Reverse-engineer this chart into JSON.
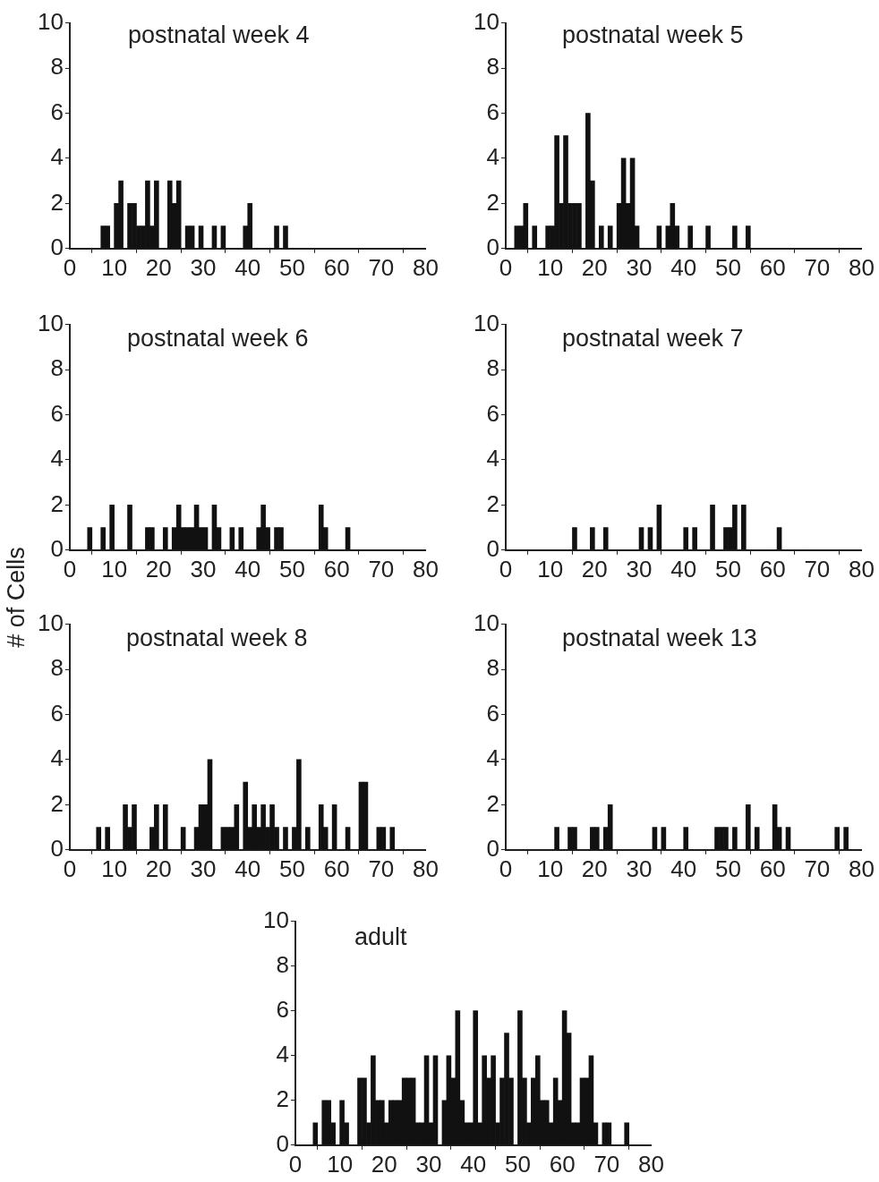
{
  "chart_data": [
    {
      "type": "histogram",
      "title": "postnatal week 4",
      "color": "#111111",
      "xlim": [
        0,
        80
      ],
      "xticks": [
        0,
        10,
        20,
        30,
        40,
        50,
        60,
        70,
        80
      ],
      "ylim": [
        0,
        10
      ],
      "yticks": [
        0,
        2,
        4,
        6,
        8,
        10
      ],
      "bins": [
        0,
        1,
        2,
        3,
        4,
        5,
        6,
        7,
        8,
        9,
        10,
        11,
        12,
        13,
        14,
        15,
        16,
        17,
        18,
        19,
        20,
        21,
        22,
        23,
        24,
        25,
        26,
        27,
        28,
        29,
        30,
        31,
        32,
        33,
        34,
        35,
        36,
        37,
        38,
        39,
        40,
        41,
        42,
        43,
        44,
        45,
        46,
        47,
        48,
        49,
        50,
        51,
        52,
        53,
        54,
        55,
        56,
        57,
        58,
        59,
        60,
        61,
        62,
        63,
        64,
        65,
        66,
        67,
        68,
        69,
        70,
        71,
        72,
        73,
        74,
        75,
        76,
        77,
        78,
        79,
        80
      ],
      "values": [
        0,
        0,
        0,
        0,
        0,
        0,
        0,
        1,
        1,
        0,
        2,
        3,
        0,
        2,
        2,
        1,
        1,
        3,
        1,
        3,
        0,
        0,
        3,
        2,
        3,
        0,
        1,
        1,
        0,
        1,
        0,
        0,
        1,
        0,
        1,
        0,
        0,
        0,
        0,
        1,
        2,
        0,
        0,
        0,
        0,
        0,
        1,
        0,
        1,
        0,
        0,
        0,
        0,
        0,
        0,
        0,
        0,
        0,
        0,
        0,
        0,
        0,
        0,
        0,
        0,
        0,
        0,
        0,
        0,
        0,
        0,
        0,
        0,
        0,
        0,
        0,
        0,
        0,
        0,
        0
      ]
    },
    {
      "type": "histogram",
      "title": "postnatal week 5",
      "color": "#111111",
      "xlim": [
        0,
        80
      ],
      "xticks": [
        0,
        10,
        20,
        30,
        40,
        50,
        60,
        70,
        80
      ],
      "ylim": [
        0,
        10
      ],
      "yticks": [
        0,
        2,
        4,
        6,
        8,
        10
      ],
      "bins": [
        0,
        1,
        2,
        3,
        4,
        5,
        6,
        7,
        8,
        9,
        10,
        11,
        12,
        13,
        14,
        15,
        16,
        17,
        18,
        19,
        20,
        21,
        22,
        23,
        24,
        25,
        26,
        27,
        28,
        29,
        30,
        31,
        32,
        33,
        34,
        35,
        36,
        37,
        38,
        39,
        40,
        41,
        42,
        43,
        44,
        45,
        46,
        47,
        48,
        49,
        50,
        51,
        52,
        53,
        54,
        55,
        56,
        57,
        58,
        59,
        60,
        61,
        62,
        63,
        64,
        65,
        66,
        67,
        68,
        69,
        70,
        71,
        72,
        73,
        74,
        75,
        76,
        77,
        78,
        79,
        80
      ],
      "values": [
        0,
        0,
        1,
        1,
        2,
        0,
        1,
        0,
        0,
        1,
        1,
        5,
        2,
        5,
        2,
        2,
        2,
        0,
        6,
        3,
        0,
        1,
        0,
        1,
        0,
        2,
        4,
        2,
        4,
        1,
        0,
        0,
        0,
        0,
        1,
        0,
        1,
        2,
        1,
        0,
        0,
        1,
        0,
        0,
        0,
        1,
        0,
        0,
        0,
        0,
        0,
        1,
        0,
        0,
        1,
        0,
        0,
        0,
        0,
        0,
        0,
        0,
        0,
        0,
        0,
        0,
        0,
        0,
        0,
        0,
        0,
        0,
        0,
        0,
        0,
        0,
        0,
        0,
        0,
        0
      ]
    },
    {
      "type": "histogram",
      "title": "postnatal week 6",
      "ylabel": "# of Cells",
      "color": "#111111",
      "xlim": [
        0,
        80
      ],
      "xticks": [
        0,
        10,
        20,
        30,
        40,
        50,
        60,
        70,
        80
      ],
      "ylim": [
        0,
        10
      ],
      "yticks": [
        0,
        2,
        4,
        6,
        8,
        10
      ],
      "bins": [
        0,
        1,
        2,
        3,
        4,
        5,
        6,
        7,
        8,
        9,
        10,
        11,
        12,
        13,
        14,
        15,
        16,
        17,
        18,
        19,
        20,
        21,
        22,
        23,
        24,
        25,
        26,
        27,
        28,
        29,
        30,
        31,
        32,
        33,
        34,
        35,
        36,
        37,
        38,
        39,
        40,
        41,
        42,
        43,
        44,
        45,
        46,
        47,
        48,
        49,
        50,
        51,
        52,
        53,
        54,
        55,
        56,
        57,
        58,
        59,
        60,
        61,
        62,
        63,
        64,
        65,
        66,
        67,
        68,
        69,
        70,
        71,
        72,
        73,
        74,
        75,
        76,
        77,
        78,
        79,
        80
      ],
      "values": [
        0,
        0,
        0,
        0,
        1,
        0,
        0,
        1,
        0,
        2,
        0,
        0,
        0,
        2,
        0,
        0,
        0,
        1,
        1,
        0,
        0,
        1,
        0,
        1,
        2,
        1,
        1,
        1,
        2,
        1,
        1,
        0,
        2,
        1,
        0,
        0,
        1,
        0,
        1,
        0,
        0,
        0,
        1,
        2,
        1,
        0,
        1,
        1,
        0,
        0,
        0,
        0,
        0,
        0,
        0,
        0,
        2,
        1,
        0,
        0,
        0,
        0,
        1,
        0,
        0,
        0,
        0,
        0,
        0,
        0,
        0,
        0,
        0,
        0,
        0,
        0,
        0,
        0,
        0,
        0
      ]
    },
    {
      "type": "histogram",
      "title": "postnatal week 7",
      "color": "#111111",
      "xlim": [
        0,
        80
      ],
      "xticks": [
        0,
        10,
        20,
        30,
        40,
        50,
        60,
        70,
        80
      ],
      "ylim": [
        0,
        10
      ],
      "yticks": [
        0,
        2,
        4,
        6,
        8,
        10
      ],
      "bins": [
        0,
        1,
        2,
        3,
        4,
        5,
        6,
        7,
        8,
        9,
        10,
        11,
        12,
        13,
        14,
        15,
        16,
        17,
        18,
        19,
        20,
        21,
        22,
        23,
        24,
        25,
        26,
        27,
        28,
        29,
        30,
        31,
        32,
        33,
        34,
        35,
        36,
        37,
        38,
        39,
        40,
        41,
        42,
        43,
        44,
        45,
        46,
        47,
        48,
        49,
        50,
        51,
        52,
        53,
        54,
        55,
        56,
        57,
        58,
        59,
        60,
        61,
        62,
        63,
        64,
        65,
        66,
        67,
        68,
        69,
        70,
        71,
        72,
        73,
        74,
        75,
        76,
        77,
        78,
        79,
        80
      ],
      "values": [
        0,
        0,
        0,
        0,
        0,
        0,
        0,
        0,
        0,
        0,
        0,
        0,
        0,
        0,
        0,
        1,
        0,
        0,
        0,
        1,
        0,
        0,
        1,
        0,
        0,
        0,
        0,
        0,
        0,
        0,
        1,
        0,
        1,
        0,
        2,
        0,
        0,
        0,
        0,
        0,
        1,
        0,
        1,
        0,
        0,
        0,
        2,
        0,
        0,
        1,
        1,
        2,
        0,
        2,
        0,
        0,
        0,
        0,
        0,
        0,
        0,
        1,
        0,
        0,
        0,
        0,
        0,
        0,
        0,
        0,
        0,
        0,
        0,
        0,
        0,
        0,
        0,
        0,
        0,
        0
      ]
    },
    {
      "type": "histogram",
      "title": "postnatal week 8",
      "color": "#111111",
      "xlim": [
        0,
        80
      ],
      "xticks": [
        0,
        10,
        20,
        30,
        40,
        50,
        60,
        70,
        80
      ],
      "ylim": [
        0,
        10
      ],
      "yticks": [
        0,
        2,
        4,
        6,
        8,
        10
      ],
      "bins": [
        0,
        1,
        2,
        3,
        4,
        5,
        6,
        7,
        8,
        9,
        10,
        11,
        12,
        13,
        14,
        15,
        16,
        17,
        18,
        19,
        20,
        21,
        22,
        23,
        24,
        25,
        26,
        27,
        28,
        29,
        30,
        31,
        32,
        33,
        34,
        35,
        36,
        37,
        38,
        39,
        40,
        41,
        42,
        43,
        44,
        45,
        46,
        47,
        48,
        49,
        50,
        51,
        52,
        53,
        54,
        55,
        56,
        57,
        58,
        59,
        60,
        61,
        62,
        63,
        64,
        65,
        66,
        67,
        68,
        69,
        70,
        71,
        72,
        73,
        74,
        75,
        76,
        77,
        78,
        79,
        80
      ],
      "values": [
        0,
        0,
        0,
        0,
        0,
        0,
        1,
        0,
        1,
        0,
        0,
        0,
        2,
        1,
        2,
        0,
        0,
        0,
        1,
        2,
        0,
        2,
        0,
        0,
        0,
        1,
        0,
        0,
        1,
        2,
        2,
        4,
        0,
        0,
        1,
        1,
        1,
        2,
        0,
        3,
        1,
        2,
        1,
        2,
        1,
        2,
        1,
        0,
        1,
        0,
        1,
        4,
        0,
        1,
        0,
        0,
        2,
        1,
        0,
        2,
        0,
        0,
        1,
        0,
        0,
        3,
        3,
        0,
        0,
        1,
        1,
        0,
        1,
        0,
        0,
        0,
        0,
        0,
        0,
        0
      ]
    },
    {
      "type": "histogram",
      "title": "postnatal week 13",
      "color": "#111111",
      "xlim": [
        0,
        80
      ],
      "xticks": [
        0,
        10,
        20,
        30,
        40,
        50,
        60,
        70,
        80
      ],
      "ylim": [
        0,
        10
      ],
      "yticks": [
        0,
        2,
        4,
        6,
        8,
        10
      ],
      "bins": [
        0,
        1,
        2,
        3,
        4,
        5,
        6,
        7,
        8,
        9,
        10,
        11,
        12,
        13,
        14,
        15,
        16,
        17,
        18,
        19,
        20,
        21,
        22,
        23,
        24,
        25,
        26,
        27,
        28,
        29,
        30,
        31,
        32,
        33,
        34,
        35,
        36,
        37,
        38,
        39,
        40,
        41,
        42,
        43,
        44,
        45,
        46,
        47,
        48,
        49,
        50,
        51,
        52,
        53,
        54,
        55,
        56,
        57,
        58,
        59,
        60,
        61,
        62,
        63,
        64,
        65,
        66,
        67,
        68,
        69,
        70,
        71,
        72,
        73,
        74,
        75,
        76,
        77,
        78,
        79,
        80
      ],
      "values": [
        0,
        0,
        0,
        0,
        0,
        0,
        0,
        0,
        0,
        0,
        0,
        1,
        0,
        0,
        1,
        1,
        0,
        0,
        0,
        1,
        1,
        0,
        1,
        2,
        0,
        0,
        0,
        0,
        0,
        0,
        0,
        0,
        0,
        1,
        0,
        1,
        0,
        0,
        0,
        0,
        1,
        0,
        0,
        0,
        0,
        0,
        0,
        1,
        1,
        1,
        0,
        1,
        0,
        0,
        2,
        0,
        1,
        0,
        0,
        0,
        2,
        1,
        0,
        1,
        0,
        0,
        0,
        0,
        0,
        0,
        0,
        0,
        0,
        0,
        1,
        0,
        1,
        0,
        0,
        0
      ]
    },
    {
      "type": "histogram",
      "title": "adult",
      "color": "#111111",
      "xlim": [
        0,
        80
      ],
      "xticks": [
        0,
        10,
        20,
        30,
        40,
        50,
        60,
        70,
        80
      ],
      "ylim": [
        0,
        10
      ],
      "yticks": [
        0,
        2,
        4,
        6,
        8,
        10
      ],
      "bins": [
        0,
        1,
        2,
        3,
        4,
        5,
        6,
        7,
        8,
        9,
        10,
        11,
        12,
        13,
        14,
        15,
        16,
        17,
        18,
        19,
        20,
        21,
        22,
        23,
        24,
        25,
        26,
        27,
        28,
        29,
        30,
        31,
        32,
        33,
        34,
        35,
        36,
        37,
        38,
        39,
        40,
        41,
        42,
        43,
        44,
        45,
        46,
        47,
        48,
        49,
        50,
        51,
        52,
        53,
        54,
        55,
        56,
        57,
        58,
        59,
        60,
        61,
        62,
        63,
        64,
        65,
        66,
        67,
        68,
        69,
        70,
        71,
        72,
        73,
        74,
        75,
        76,
        77,
        78,
        79,
        80
      ],
      "values": [
        0,
        0,
        0,
        0,
        1,
        0,
        2,
        2,
        1,
        0,
        2,
        1,
        0,
        0,
        3,
        3,
        1,
        4,
        2,
        2,
        1,
        2,
        2,
        2,
        3,
        3,
        3,
        1,
        1,
        4,
        1,
        4,
        0,
        2,
        4,
        3,
        6,
        2,
        1,
        1,
        6,
        1,
        4,
        3,
        4,
        1,
        3,
        5,
        3,
        0,
        6,
        3,
        1,
        3,
        4,
        2,
        2,
        1,
        3,
        2,
        6,
        5,
        1,
        1,
        3,
        3,
        4,
        1,
        0,
        1,
        1,
        0,
        0,
        0,
        1,
        0,
        0,
        0,
        0,
        0
      ]
    }
  ]
}
